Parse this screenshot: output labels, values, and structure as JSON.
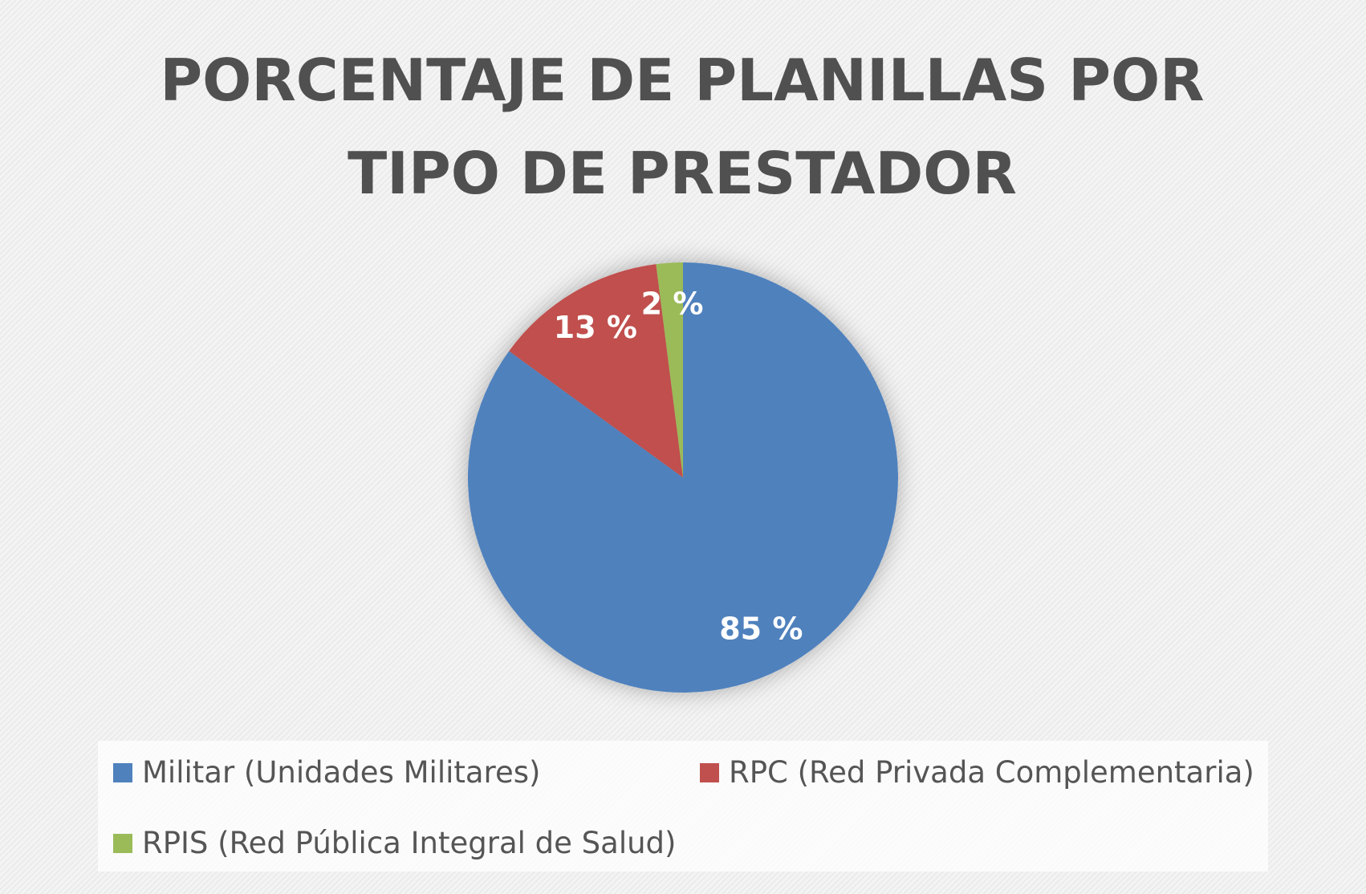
{
  "chart_data": {
    "type": "pie",
    "title": "PORCENTAJE DE PLANILLAS POR TIPO DE PRESTADOR",
    "categories": [
      "Militar (Unidades Militares)",
      "RPC (Red Privada Complementaria)",
      "RPIS (Red Pública Integral de Salud)"
    ],
    "values": [
      85,
      13,
      2
    ],
    "value_labels": [
      "85 %",
      "13 %",
      "2 %"
    ],
    "colors": [
      "#4f81bd",
      "#c0504d",
      "#9bbb59"
    ],
    "legend": "bottom"
  }
}
